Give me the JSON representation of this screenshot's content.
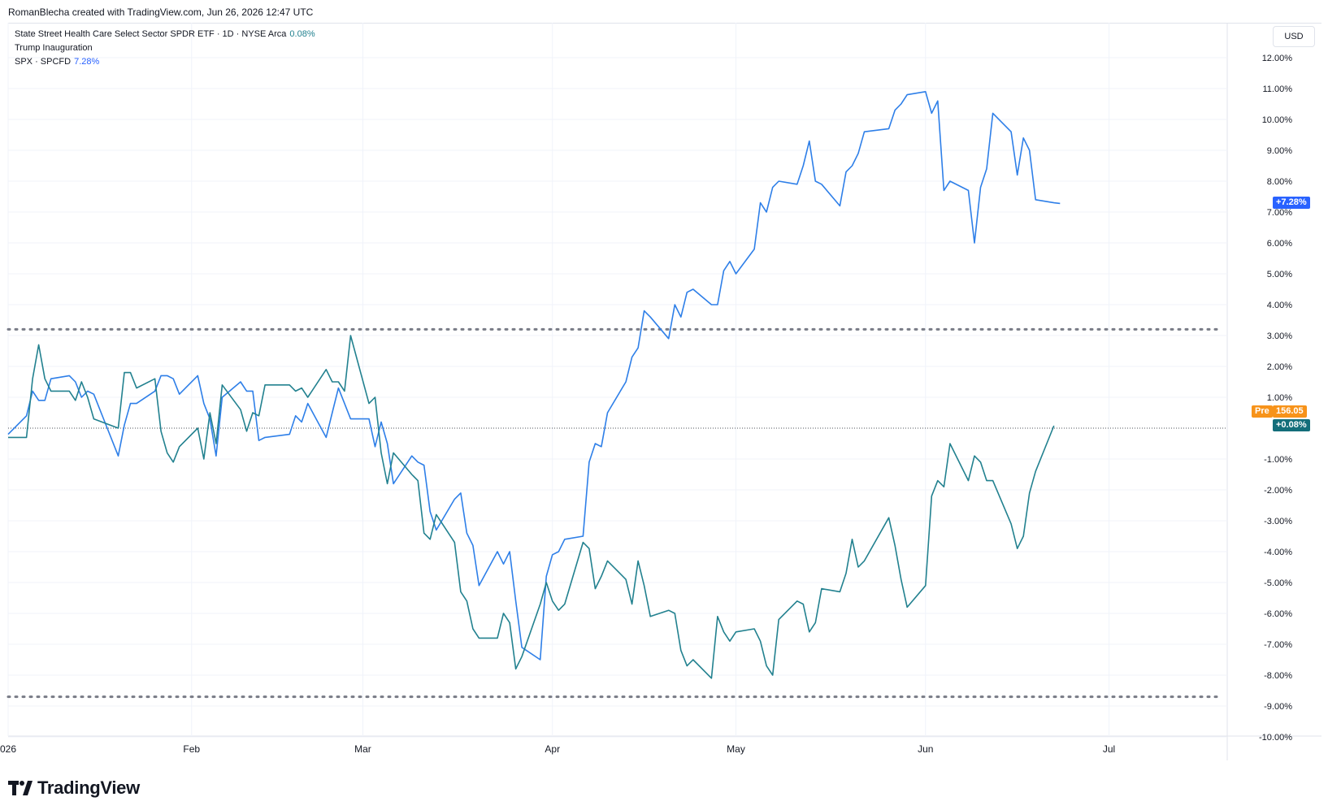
{
  "header": {
    "attribution": "RomanBlecha created with TradingView.com, Jun 26, 2026 12:47 UTC"
  },
  "legend": {
    "symbol_title": "State Street Health Care Select Sector SPDR ETF · 1D · NYSE Arca",
    "symbol_value": "0.08%",
    "annotation": "Trump Inauguration",
    "compare_title": "SPX · SPCFD",
    "compare_value": "7.28%"
  },
  "scale_button": "USD",
  "price_tags": {
    "spx_last": "+7.28%",
    "pre_label": "Pre",
    "pre_price": "156.05",
    "xlv_last": "+0.08%"
  },
  "colors": {
    "xlv": "#22818f",
    "spx": "#2e7fe8",
    "pre": "#f7931a",
    "spx_tag": "#2962ff",
    "xlv_tag": "#136e7a",
    "dotted": "#787b86"
  },
  "brand": {
    "name": "TradingView"
  },
  "chart_data": {
    "type": "line",
    "yaxis": {
      "unit": "percent",
      "ticks": [
        "12.00%",
        "11.00%",
        "10.00%",
        "9.00%",
        "8.00%",
        "7.00%",
        "6.00%",
        "5.00%",
        "4.00%",
        "3.00%",
        "2.00%",
        "1.00%",
        "-1.00%",
        "-2.00%",
        "-3.00%",
        "-4.00%",
        "-5.00%",
        "-6.00%",
        "-7.00%",
        "-8.00%",
        "-9.00%",
        "-10.00%"
      ],
      "tick_values": [
        12,
        11,
        10,
        9,
        8,
        7,
        6,
        5,
        4,
        3,
        2,
        1,
        -1,
        -2,
        -3,
        -4,
        -5,
        -6,
        -7,
        -8,
        -9,
        -10
      ],
      "range": [
        -10,
        12
      ]
    },
    "xaxis": {
      "ticks": [
        {
          "label": "026",
          "date": "2026-01-02"
        },
        {
          "label": "Feb",
          "date": "2026-02-01"
        },
        {
          "label": "Mar",
          "date": "2026-03-01"
        },
        {
          "label": "Apr",
          "date": "2026-04-01"
        },
        {
          "label": "May",
          "date": "2026-05-01"
        },
        {
          "label": "Jun",
          "date": "2026-06-01"
        },
        {
          "label": "Jul",
          "date": "2026-07-01"
        }
      ],
      "range": [
        "2026-01-02",
        "2026-07-19"
      ]
    },
    "horizontal_lines": [
      3.2,
      -8.7
    ],
    "zero_line": 0,
    "series": [
      {
        "name": "SPX · SPCFD",
        "color": "#2e7fe8",
        "points": [
          [
            "2026-01-02",
            -0.2
          ],
          [
            "2026-01-05",
            0.4
          ],
          [
            "2026-01-06",
            1.2
          ],
          [
            "2026-01-07",
            0.9
          ],
          [
            "2026-01-08",
            0.9
          ],
          [
            "2026-01-09",
            1.6
          ],
          [
            "2026-01-12",
            1.7
          ],
          [
            "2026-01-13",
            1.5
          ],
          [
            "2026-01-14",
            1.0
          ],
          [
            "2026-01-15",
            1.2
          ],
          [
            "2026-01-16",
            1.1
          ],
          [
            "2026-01-20",
            -0.9
          ],
          [
            "2026-01-21",
            0.1
          ],
          [
            "2026-01-22",
            0.8
          ],
          [
            "2026-01-23",
            0.8
          ],
          [
            "2026-01-26",
            1.2
          ],
          [
            "2026-01-27",
            1.7
          ],
          [
            "2026-01-28",
            1.7
          ],
          [
            "2026-01-29",
            1.6
          ],
          [
            "2026-01-30",
            1.1
          ],
          [
            "2026-02-02",
            1.7
          ],
          [
            "2026-02-03",
            0.8
          ],
          [
            "2026-02-04",
            0.3
          ],
          [
            "2026-02-05",
            -0.9
          ],
          [
            "2026-02-06",
            1.0
          ],
          [
            "2026-02-09",
            1.5
          ],
          [
            "2026-02-10",
            1.2
          ],
          [
            "2026-02-11",
            1.2
          ],
          [
            "2026-02-12",
            -0.4
          ],
          [
            "2026-02-13",
            -0.3
          ],
          [
            "2026-02-17",
            -0.2
          ],
          [
            "2026-02-18",
            0.4
          ],
          [
            "2026-02-19",
            0.2
          ],
          [
            "2026-02-20",
            0.8
          ],
          [
            "2026-02-23",
            -0.3
          ],
          [
            "2026-02-24",
            0.5
          ],
          [
            "2026-02-25",
            1.3
          ],
          [
            "2026-02-26",
            0.8
          ],
          [
            "2026-02-27",
            0.3
          ],
          [
            "2026-03-02",
            0.3
          ],
          [
            "2026-03-03",
            -0.6
          ],
          [
            "2026-03-04",
            0.2
          ],
          [
            "2026-03-05",
            -0.5
          ],
          [
            "2026-03-06",
            -1.8
          ],
          [
            "2026-03-09",
            -0.9
          ],
          [
            "2026-03-10",
            -1.1
          ],
          [
            "2026-03-11",
            -1.2
          ],
          [
            "2026-03-12",
            -2.7
          ],
          [
            "2026-03-13",
            -3.3
          ],
          [
            "2026-03-16",
            -2.3
          ],
          [
            "2026-03-17",
            -2.1
          ],
          [
            "2026-03-18",
            -3.4
          ],
          [
            "2026-03-19",
            -3.8
          ],
          [
            "2026-03-20",
            -5.1
          ],
          [
            "2026-03-23",
            -4.0
          ],
          [
            "2026-03-24",
            -4.4
          ],
          [
            "2026-03-25",
            -4.0
          ],
          [
            "2026-03-26",
            -5.6
          ],
          [
            "2026-03-27",
            -7.1
          ],
          [
            "2026-03-30",
            -7.5
          ],
          [
            "2026-03-31",
            -4.8
          ],
          [
            "2026-04-01",
            -4.1
          ],
          [
            "2026-04-02",
            -4.0
          ],
          [
            "2026-04-03",
            -3.6
          ],
          [
            "2026-04-06",
            -3.5
          ],
          [
            "2026-04-07",
            -1.1
          ],
          [
            "2026-04-08",
            -0.5
          ],
          [
            "2026-04-09",
            -0.6
          ],
          [
            "2026-04-10",
            0.5
          ],
          [
            "2026-04-13",
            1.5
          ],
          [
            "2026-04-14",
            2.3
          ],
          [
            "2026-04-15",
            2.6
          ],
          [
            "2026-04-16",
            3.8
          ],
          [
            "2026-04-17",
            3.6
          ],
          [
            "2026-04-20",
            2.9
          ],
          [
            "2026-04-21",
            4.0
          ],
          [
            "2026-04-22",
            3.6
          ],
          [
            "2026-04-23",
            4.4
          ],
          [
            "2026-04-24",
            4.5
          ],
          [
            "2026-04-27",
            4.0
          ],
          [
            "2026-04-28",
            4.0
          ],
          [
            "2026-04-29",
            5.1
          ],
          [
            "2026-04-30",
            5.4
          ],
          [
            "2026-05-01",
            5.0
          ],
          [
            "2026-05-04",
            5.8
          ],
          [
            "2026-05-05",
            7.3
          ],
          [
            "2026-05-06",
            7.0
          ],
          [
            "2026-05-07",
            7.8
          ],
          [
            "2026-05-08",
            8.0
          ],
          [
            "2026-05-11",
            7.9
          ],
          [
            "2026-05-12",
            8.5
          ],
          [
            "2026-05-13",
            9.3
          ],
          [
            "2026-05-14",
            8.0
          ],
          [
            "2026-05-15",
            7.9
          ],
          [
            "2026-05-18",
            7.2
          ],
          [
            "2026-05-19",
            8.3
          ],
          [
            "2026-05-20",
            8.5
          ],
          [
            "2026-05-21",
            8.9
          ],
          [
            "2026-05-22",
            9.6
          ],
          [
            "2026-05-26",
            9.7
          ],
          [
            "2026-05-27",
            10.3
          ],
          [
            "2026-05-28",
            10.5
          ],
          [
            "2026-05-29",
            10.8
          ],
          [
            "2026-06-01",
            10.9
          ],
          [
            "2026-06-02",
            10.2
          ],
          [
            "2026-06-03",
            10.6
          ],
          [
            "2026-06-04",
            7.7
          ],
          [
            "2026-06-05",
            8.0
          ],
          [
            "2026-06-08",
            7.7
          ],
          [
            "2026-06-09",
            6.0
          ],
          [
            "2026-06-10",
            7.8
          ],
          [
            "2026-06-11",
            8.4
          ],
          [
            "2026-06-12",
            10.2
          ],
          [
            "2026-06-15",
            9.6
          ],
          [
            "2026-06-16",
            8.2
          ],
          [
            "2026-06-17",
            9.4
          ],
          [
            "2026-06-18",
            9.0
          ],
          [
            "2026-06-19",
            7.4
          ],
          [
            "2026-06-22",
            7.3
          ],
          [
            "2026-06-23",
            7.28
          ]
        ]
      },
      {
        "name": "State Street Health Care Select Sector SPDR ETF",
        "color": "#22818f",
        "points": [
          [
            "2026-01-02",
            -0.3
          ],
          [
            "2026-01-05",
            -0.3
          ],
          [
            "2026-01-06",
            1.6
          ],
          [
            "2026-01-07",
            2.7
          ],
          [
            "2026-01-08",
            1.6
          ],
          [
            "2026-01-09",
            1.2
          ],
          [
            "2026-01-12",
            1.2
          ],
          [
            "2026-01-13",
            0.9
          ],
          [
            "2026-01-14",
            1.5
          ],
          [
            "2026-01-15",
            1.0
          ],
          [
            "2026-01-16",
            0.3
          ],
          [
            "2026-01-20",
            0.0
          ],
          [
            "2026-01-21",
            1.8
          ],
          [
            "2026-01-22",
            1.8
          ],
          [
            "2026-01-23",
            1.3
          ],
          [
            "2026-01-26",
            1.6
          ],
          [
            "2026-01-27",
            -0.1
          ],
          [
            "2026-01-28",
            -0.8
          ],
          [
            "2026-01-29",
            -1.1
          ],
          [
            "2026-01-30",
            -0.6
          ],
          [
            "2026-02-02",
            0.0
          ],
          [
            "2026-02-03",
            -1.0
          ],
          [
            "2026-02-04",
            0.5
          ],
          [
            "2026-02-05",
            -0.5
          ],
          [
            "2026-02-06",
            1.4
          ],
          [
            "2026-02-09",
            0.6
          ],
          [
            "2026-02-10",
            -0.1
          ],
          [
            "2026-02-11",
            0.5
          ],
          [
            "2026-02-12",
            0.4
          ],
          [
            "2026-02-13",
            1.4
          ],
          [
            "2026-02-17",
            1.4
          ],
          [
            "2026-02-18",
            1.2
          ],
          [
            "2026-02-19",
            1.3
          ],
          [
            "2026-02-20",
            1.0
          ],
          [
            "2026-02-23",
            1.9
          ],
          [
            "2026-02-24",
            1.5
          ],
          [
            "2026-02-25",
            1.5
          ],
          [
            "2026-02-26",
            1.2
          ],
          [
            "2026-02-27",
            3.0
          ],
          [
            "2026-03-02",
            0.8
          ],
          [
            "2026-03-03",
            1.0
          ],
          [
            "2026-03-04",
            -0.8
          ],
          [
            "2026-03-05",
            -1.8
          ],
          [
            "2026-03-06",
            -0.8
          ],
          [
            "2026-03-09",
            -1.5
          ],
          [
            "2026-03-10",
            -1.7
          ],
          [
            "2026-03-11",
            -3.4
          ],
          [
            "2026-03-12",
            -3.6
          ],
          [
            "2026-03-13",
            -2.8
          ],
          [
            "2026-03-16",
            -3.7
          ],
          [
            "2026-03-17",
            -5.3
          ],
          [
            "2026-03-18",
            -5.6
          ],
          [
            "2026-03-19",
            -6.5
          ],
          [
            "2026-03-20",
            -6.8
          ],
          [
            "2026-03-23",
            -6.8
          ],
          [
            "2026-03-24",
            -6.0
          ],
          [
            "2026-03-25",
            -6.3
          ],
          [
            "2026-03-26",
            -7.8
          ],
          [
            "2026-03-27",
            -7.4
          ],
          [
            "2026-03-30",
            -5.7
          ],
          [
            "2026-03-31",
            -5.0
          ],
          [
            "2026-04-01",
            -5.6
          ],
          [
            "2026-04-02",
            -5.9
          ],
          [
            "2026-04-03",
            -5.7
          ],
          [
            "2026-04-06",
            -3.7
          ],
          [
            "2026-04-07",
            -3.9
          ],
          [
            "2026-04-08",
            -5.2
          ],
          [
            "2026-04-09",
            -4.8
          ],
          [
            "2026-04-10",
            -4.3
          ],
          [
            "2026-04-13",
            -4.9
          ],
          [
            "2026-04-14",
            -5.7
          ],
          [
            "2026-04-15",
            -4.3
          ],
          [
            "2026-04-16",
            -5.1
          ],
          [
            "2026-04-17",
            -6.1
          ],
          [
            "2026-04-20",
            -5.9
          ],
          [
            "2026-04-21",
            -6.0
          ],
          [
            "2026-04-22",
            -7.2
          ],
          [
            "2026-04-23",
            -7.7
          ],
          [
            "2026-04-24",
            -7.5
          ],
          [
            "2026-04-27",
            -8.1
          ],
          [
            "2026-04-28",
            -6.1
          ],
          [
            "2026-04-29",
            -6.6
          ],
          [
            "2026-04-30",
            -6.9
          ],
          [
            "2026-05-01",
            -6.6
          ],
          [
            "2026-05-04",
            -6.5
          ],
          [
            "2026-05-05",
            -6.9
          ],
          [
            "2026-05-06",
            -7.7
          ],
          [
            "2026-05-07",
            -8.0
          ],
          [
            "2026-05-08",
            -6.2
          ],
          [
            "2026-05-11",
            -5.6
          ],
          [
            "2026-05-12",
            -5.7
          ],
          [
            "2026-05-13",
            -6.6
          ],
          [
            "2026-05-14",
            -6.3
          ],
          [
            "2026-05-15",
            -5.2
          ],
          [
            "2026-05-18",
            -5.3
          ],
          [
            "2026-05-19",
            -4.7
          ],
          [
            "2026-05-20",
            -3.6
          ],
          [
            "2026-05-21",
            -4.5
          ],
          [
            "2026-05-22",
            -4.3
          ],
          [
            "2026-05-26",
            -2.9
          ],
          [
            "2026-05-27",
            -3.8
          ],
          [
            "2026-05-28",
            -4.9
          ],
          [
            "2026-05-29",
            -5.8
          ],
          [
            "2026-06-01",
            -5.1
          ],
          [
            "2026-06-02",
            -2.2
          ],
          [
            "2026-06-03",
            -1.7
          ],
          [
            "2026-06-04",
            -1.9
          ],
          [
            "2026-06-05",
            -0.5
          ],
          [
            "2026-06-08",
            -1.7
          ],
          [
            "2026-06-09",
            -0.9
          ],
          [
            "2026-06-10",
            -1.1
          ],
          [
            "2026-06-11",
            -1.7
          ],
          [
            "2026-06-12",
            -1.7
          ],
          [
            "2026-06-15",
            -3.1
          ],
          [
            "2026-06-16",
            -3.9
          ],
          [
            "2026-06-17",
            -3.5
          ],
          [
            "2026-06-18",
            -2.1
          ],
          [
            "2026-06-19",
            -1.4
          ],
          [
            "2026-06-22",
            0.08
          ]
        ]
      }
    ]
  }
}
